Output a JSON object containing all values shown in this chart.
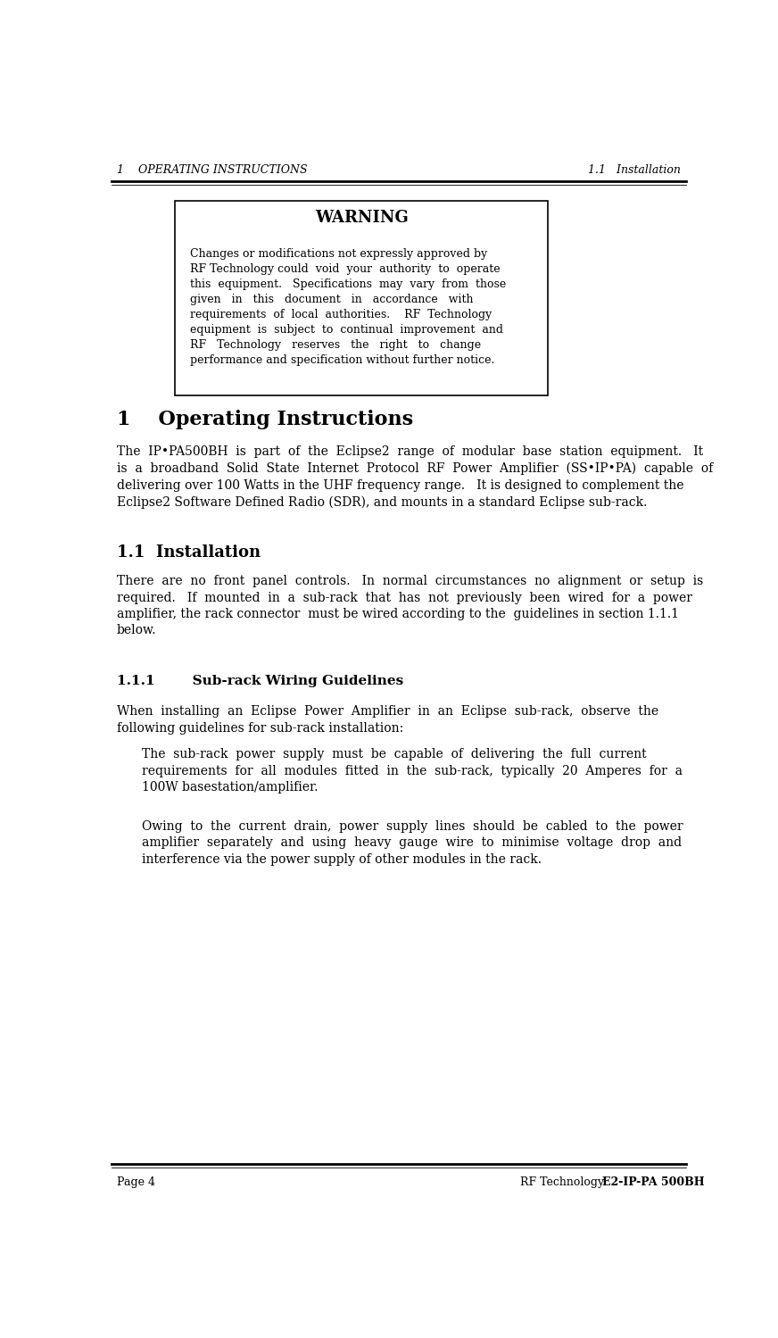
{
  "header_left": "1    OPERATING INSTRUCTIONS",
  "header_right": "1.1   Installation",
  "footer_left": "Page 4",
  "footer_center": "RF Technology",
  "footer_right": "E2-IP-PA 500BH",
  "warning_title": "WARNING",
  "warning_body": "Changes or modifications not expressly approved by\nRF Technology could  void  your  authority  to  operate\nthis  equipment.   Specifications  may  vary  from  those\ngiven   in   this   document   in   accordance   with\nrequirements  of  local  authorities.    RF  Technology\nequipment  is  subject  to  continual  improvement  and\nRF   Technology   reserves   the   right   to   change\nperformance and specification without further notice.",
  "section1_title": "1    Operating Instructions",
  "section1_body": "The  IP•PA500BH  is  part  of  the  Eclipse2  range  of  modular  base  station  equipment.   It\nis  a  broadband  Solid  State  Internet  Protocol  RF  Power  Amplifier  (SS•IP•PA)  capable  of\ndelivering over 100 Watts in the UHF frequency range.   It is designed to complement the\nEclipse2 Software Defined Radio (SDR), and mounts in a standard Eclipse sub-rack.",
  "section11_title": "1.1  Installation",
  "section11_body": "There  are  no  front  panel  controls.   In  normal  circumstances  no  alignment  or  setup  is\nrequired.   If  mounted  in  a  sub-rack  that  has  not  previously  been  wired  for  a  power\namplifier, the rack connector  must be wired according to the  guidelines in section 1.1.1\nbelow.",
  "section111_title": "1.1.1        Sub-rack Wiring Guidelines",
  "section111_body": "When  installing  an  Eclipse  Power  Amplifier  in  an  Eclipse  sub-rack,  observe  the\nfollowing guidelines for sub-rack installation:",
  "para1": "The  sub-rack  power  supply  must  be  capable  of  delivering  the  full  current\nrequirements  for  all  modules  fitted  in  the  sub-rack,  typically  20  Amperes  for  a\n100W basestation/amplifier.",
  "para2": "Owing  to  the  current  drain,  power  supply  lines  should  be  cabled  to  the  power\namplifier  separately  and  using  heavy  gauge  wire  to  minimise  voltage  drop  and\ninterference via the power supply of other modules in the rack.",
  "bg_color": "#ffffff",
  "text_color": "#000000"
}
